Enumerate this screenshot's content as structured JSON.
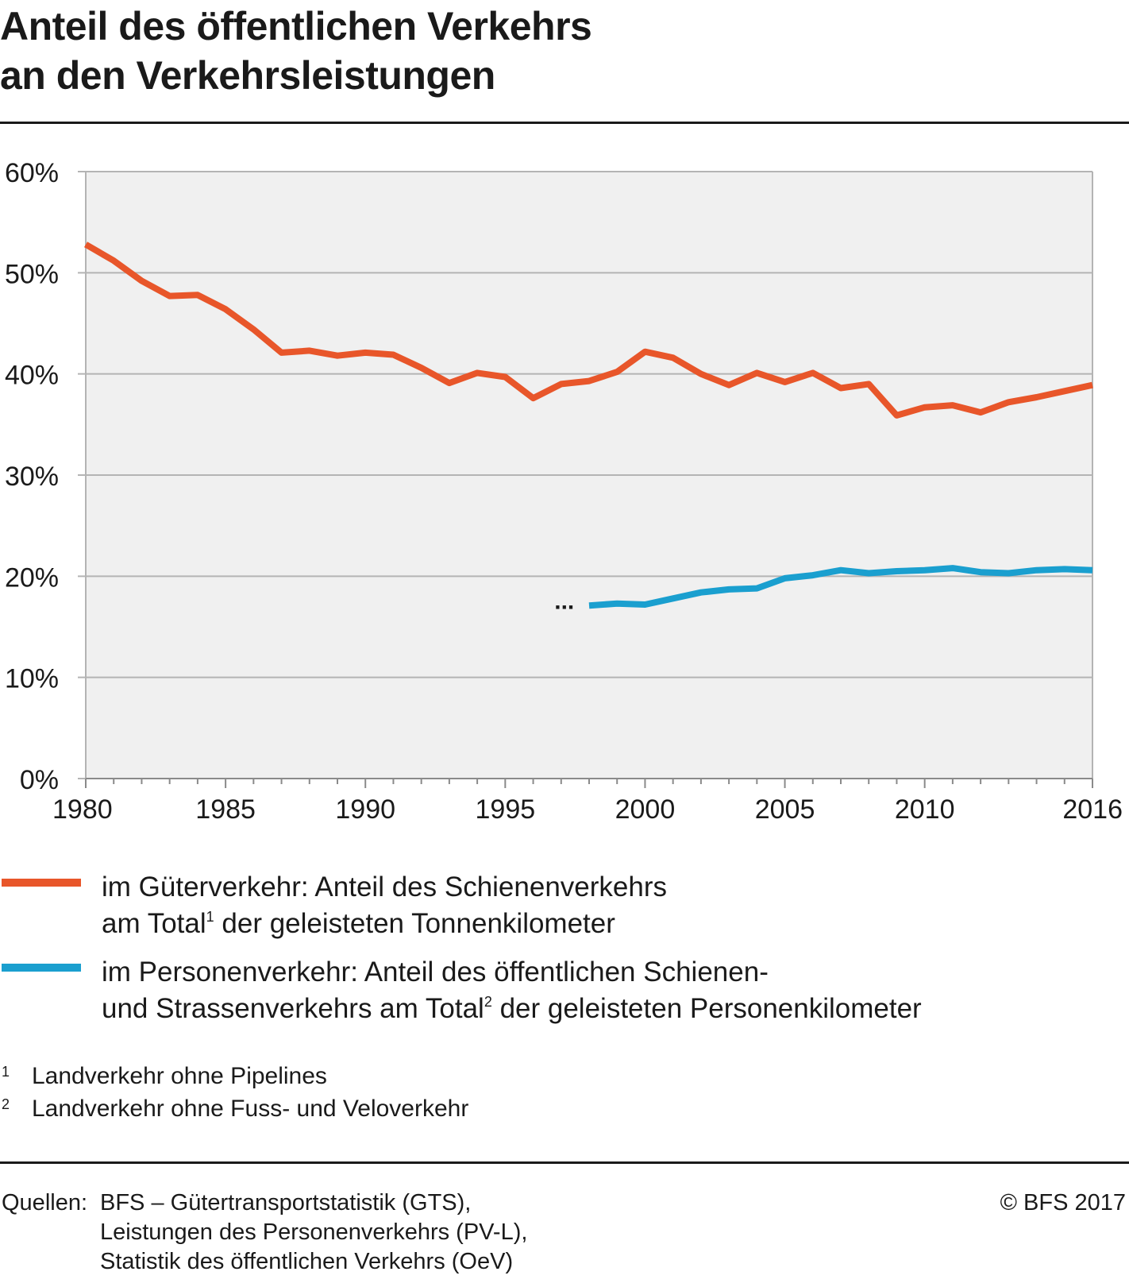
{
  "title_lines": [
    "Anteil des öffentlichen Verkehrs",
    "an den Verkehrsleistungen"
  ],
  "chart_data": {
    "type": "line",
    "x_ticks": [
      "1980",
      "1985",
      "1990",
      "1995",
      "2000",
      "2005",
      "2010",
      "2016"
    ],
    "y_ticks": [
      "0%",
      "10%",
      "20%",
      "30%",
      "40%",
      "50%",
      "60%"
    ],
    "xlim": [
      1980,
      2016
    ],
    "ylim": [
      0,
      60
    ],
    "grid": true,
    "colors": {
      "freight": "#e8562a",
      "passenger": "#1a9fcf",
      "plot_bg": "#f0f0f0",
      "grid": "#b4b4b4"
    },
    "series": [
      {
        "key": "freight",
        "x": [
          1980,
          1981,
          1982,
          1983,
          1984,
          1985,
          1986,
          1987,
          1988,
          1989,
          1990,
          1991,
          1992,
          1993,
          1994,
          1995,
          1996,
          1997,
          1998,
          1999,
          2000,
          2001,
          2002,
          2003,
          2004,
          2005,
          2006,
          2007,
          2008,
          2009,
          2010,
          2011,
          2012,
          2013,
          2014,
          2015,
          2016
        ],
        "values": [
          52.8,
          51.2,
          49.2,
          47.7,
          47.8,
          46.4,
          44.4,
          42.1,
          42.3,
          41.8,
          42.1,
          41.9,
          40.6,
          39.1,
          40.1,
          39.7,
          37.6,
          39.0,
          39.3,
          40.2,
          42.2,
          41.6,
          40.0,
          38.9,
          40.1,
          39.2,
          40.1,
          38.6,
          39.0,
          35.9,
          36.7,
          36.9,
          36.2,
          37.2,
          37.7,
          38.3,
          38.9
        ]
      },
      {
        "key": "passenger",
        "x": [
          1998,
          1999,
          2000,
          2001,
          2002,
          2003,
          2004,
          2005,
          2006,
          2007,
          2008,
          2009,
          2010,
          2011,
          2012,
          2013,
          2014,
          2015,
          2016
        ],
        "values": [
          17.1,
          17.3,
          17.2,
          17.8,
          18.4,
          18.7,
          18.8,
          19.8,
          20.1,
          20.6,
          20.3,
          20.5,
          20.6,
          20.8,
          20.4,
          20.3,
          20.6,
          20.7,
          20.6
        ]
      }
    ],
    "missing_marker": {
      "text": "...",
      "x": 1997,
      "y": 17.1
    }
  },
  "legend": [
    {
      "key": "freight",
      "color": "#e8562a",
      "lines": [
        "im Güterverkehr: Anteil des Schienenverkehrs",
        "am Total",
        "1",
        " der geleisteten Tonnenkilometer"
      ]
    },
    {
      "key": "passenger",
      "color": "#1a9fcf",
      "lines": [
        "im Personenverkehr: Anteil des öffentlichen Schienen-",
        "und Strassenverkehrs am Total",
        "2",
        " der geleisteten Personenkilometer"
      ]
    }
  ],
  "footnotes": [
    {
      "num": "1",
      "text": "Landverkehr ohne Pipelines"
    },
    {
      "num": "2",
      "text": "Landverkehr ohne Fuss- und Veloverkehr"
    }
  ],
  "source": {
    "label": "Quellen:",
    "lines": [
      "BFS – Gütertransportstatistik (GTS),",
      "Leistungen des Personenverkehrs (PV-L),",
      "Statistik des öffentlichen Verkehrs (OeV)"
    ]
  },
  "copyright": "© BFS 2017"
}
